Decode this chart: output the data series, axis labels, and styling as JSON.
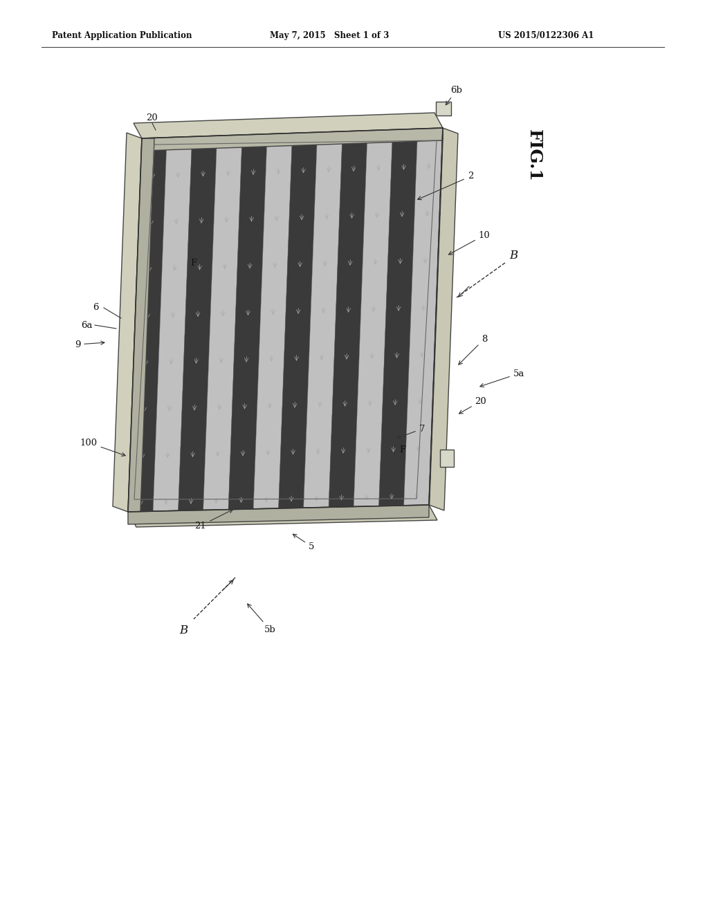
{
  "header_left": "Patent Application Publication",
  "header_mid": "May 7, 2015   Sheet 1 of 3",
  "header_right": "US 2015/0122306 A1",
  "fig_label": "FIG.1",
  "bg_color": "#ffffff",
  "panel_dark": "#1a1a1a",
  "panel_stripe_light": "#d8d8d8",
  "frame_top_face": "#d4d4c0",
  "frame_side_face": "#b8b8a8",
  "frame_front_face": "#a8a8a0",
  "connector_color": "#ccccbc",
  "line_color": "#222222",
  "annotation_color": "#222222"
}
